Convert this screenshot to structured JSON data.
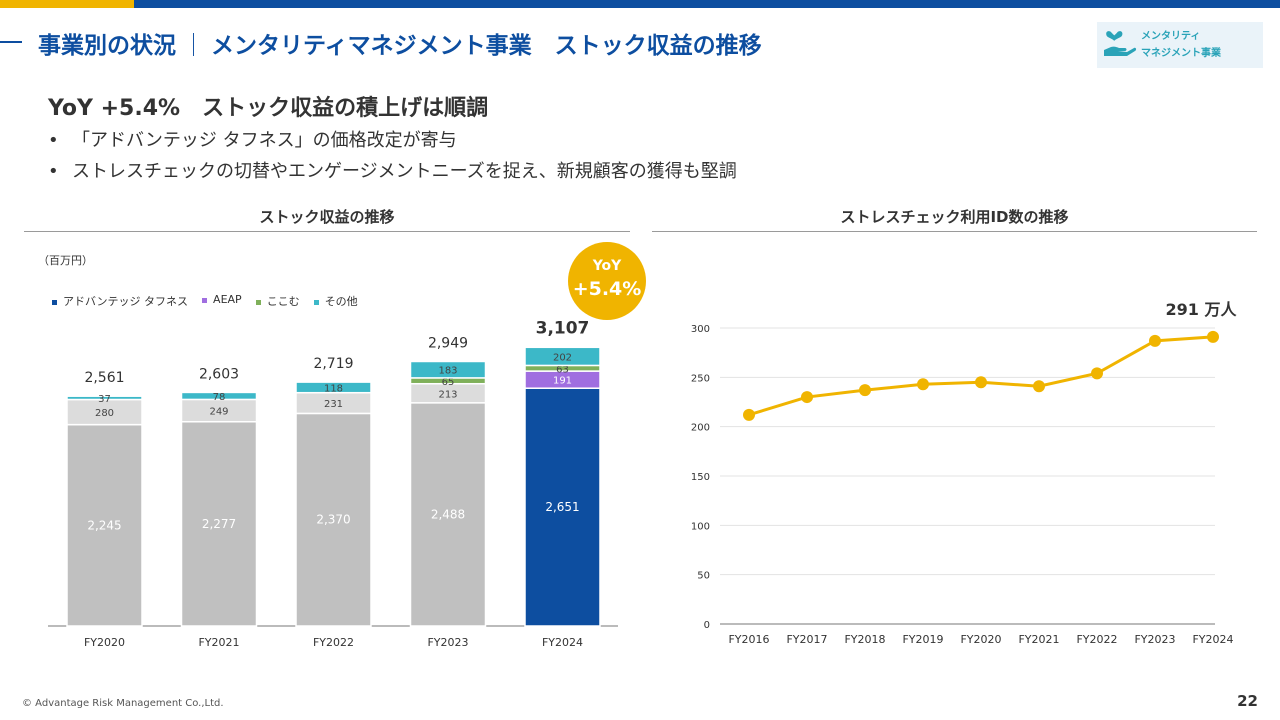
{
  "header": {
    "title_left": "事業別の状況",
    "title_sep": "｜",
    "title_right": "メンタリティマネジメント事業　ストック収益の推移",
    "logo_line1": "メンタリティ",
    "logo_line2": "マネジメント事業"
  },
  "headline": "YoY +5.4%　ストック収益の積上げは順調",
  "bullets": [
    "「アドバンテッジ タフネス」の価格改定が寄与",
    "ストレスチェックの切替やエンゲージメントニーズを捉え、新規顧客の獲得も堅調"
  ],
  "bullet_mark": "•",
  "left_panel": {
    "title": "ストック収益の推移",
    "unit": "（百万円）",
    "yoy_badge": {
      "line1": "YoY",
      "line2": "+5.4%"
    }
  },
  "right_panel": {
    "title": "ストレスチェック利用ID数の推移",
    "end_label": "291 万人"
  },
  "colors": {
    "advantage_toughness": "#0d4ea0",
    "advantage_toughness_past": "#c0c0c0",
    "aeap": "#a06ee0",
    "kokomu": "#7fb05a",
    "other": "#3cb8c8",
    "line": "#f0b400",
    "accent_blue": "#0d4ea0",
    "accent_yellow": "#f0b400"
  },
  "chart_data": [
    {
      "type": "bar",
      "stacked": true,
      "title": "ストック収益の推移",
      "ylabel": "（百万円）",
      "categories": [
        "FY2020",
        "FY2021",
        "FY2022",
        "FY2023",
        "FY2024"
      ],
      "legend": [
        "アドバンテッジ タフネス",
        "AEAP",
        "ここむ",
        "その他"
      ],
      "legend_position": "top-left",
      "series": [
        {
          "name": "アドバンテッジ タフネス",
          "values": [
            2245,
            2277,
            2370,
            2488,
            2651
          ]
        },
        {
          "name": "",
          "values": [
            280,
            249,
            231,
            213,
            191
          ]
        },
        {
          "name": "ここむ",
          "values": [
            0,
            0,
            0,
            65,
            63
          ]
        },
        {
          "name": "その他",
          "values": [
            37,
            78,
            118,
            183,
            202
          ]
        }
      ],
      "value_labels": [
        [
          "2,245",
          "280",
          "",
          "37"
        ],
        [
          "2,277",
          "249",
          "",
          "78"
        ],
        [
          "2,370",
          "231",
          "",
          "118"
        ],
        [
          "2,488",
          "213",
          "65",
          "183"
        ],
        [
          "2,651",
          "191",
          "63",
          "202"
        ]
      ],
      "totals": [
        2561,
        2603,
        2719,
        2949,
        3107
      ],
      "total_labels": [
        "2,561",
        "2,603",
        "2,719",
        "2,949",
        "3,107"
      ],
      "ylim": [
        0,
        3300
      ]
    },
    {
      "type": "line",
      "title": "ストレスチェック利用ID数の推移",
      "x": [
        "FY2016",
        "FY2017",
        "FY2018",
        "FY2019",
        "FY2020",
        "FY2021",
        "FY2022",
        "FY2023",
        "FY2024"
      ],
      "series": [
        {
          "name": "",
          "values": [
            212,
            230,
            237,
            243,
            245,
            241,
            254,
            287,
            291
          ]
        }
      ],
      "yticks": [
        0,
        50,
        100,
        150,
        200,
        250,
        300
      ],
      "ylim": [
        0,
        300
      ],
      "grid": true,
      "end_label": "291 万人"
    }
  ],
  "footer": {
    "copyright": "© Advantage Risk Management Co.,Ltd.",
    "page_number": "22"
  }
}
